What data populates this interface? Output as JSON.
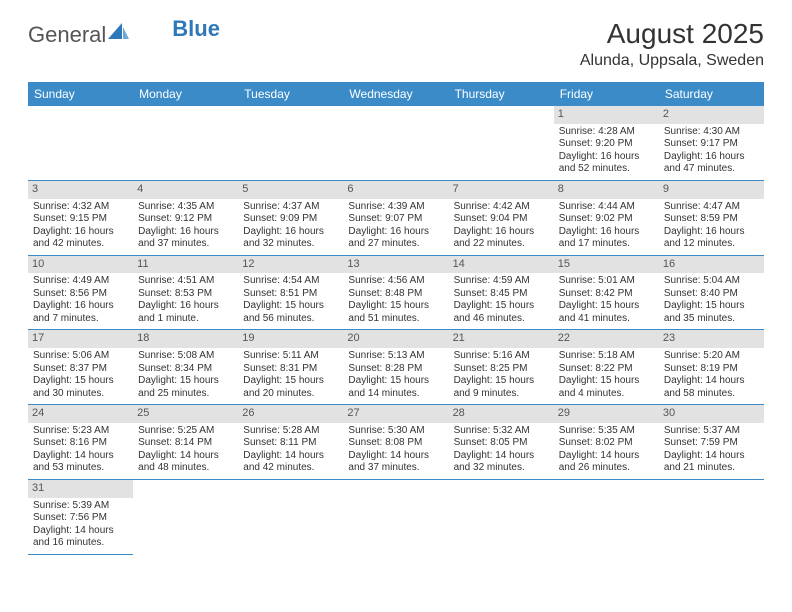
{
  "logo": {
    "t1": "General",
    "t2": "Blue"
  },
  "title": "August 2025",
  "subtitle": "Alunda, Uppsala, Sweden",
  "colors": {
    "header_bg": "#3b8bc9",
    "header_text": "#ffffff",
    "daynum_bg": "#e2e2e2",
    "row_border": "#3b8bc9",
    "logo_blue": "#2e77b8"
  },
  "weekdays": [
    "Sunday",
    "Monday",
    "Tuesday",
    "Wednesday",
    "Thursday",
    "Friday",
    "Saturday"
  ],
  "cells": [
    {
      "n": "",
      "l1": "",
      "l2": "",
      "l3": "",
      "l4": ""
    },
    {
      "n": "",
      "l1": "",
      "l2": "",
      "l3": "",
      "l4": ""
    },
    {
      "n": "",
      "l1": "",
      "l2": "",
      "l3": "",
      "l4": ""
    },
    {
      "n": "",
      "l1": "",
      "l2": "",
      "l3": "",
      "l4": ""
    },
    {
      "n": "",
      "l1": "",
      "l2": "",
      "l3": "",
      "l4": ""
    },
    {
      "n": "1",
      "l1": "Sunrise: 4:28 AM",
      "l2": "Sunset: 9:20 PM",
      "l3": "Daylight: 16 hours",
      "l4": "and 52 minutes."
    },
    {
      "n": "2",
      "l1": "Sunrise: 4:30 AM",
      "l2": "Sunset: 9:17 PM",
      "l3": "Daylight: 16 hours",
      "l4": "and 47 minutes."
    },
    {
      "n": "3",
      "l1": "Sunrise: 4:32 AM",
      "l2": "Sunset: 9:15 PM",
      "l3": "Daylight: 16 hours",
      "l4": "and 42 minutes."
    },
    {
      "n": "4",
      "l1": "Sunrise: 4:35 AM",
      "l2": "Sunset: 9:12 PM",
      "l3": "Daylight: 16 hours",
      "l4": "and 37 minutes."
    },
    {
      "n": "5",
      "l1": "Sunrise: 4:37 AM",
      "l2": "Sunset: 9:09 PM",
      "l3": "Daylight: 16 hours",
      "l4": "and 32 minutes."
    },
    {
      "n": "6",
      "l1": "Sunrise: 4:39 AM",
      "l2": "Sunset: 9:07 PM",
      "l3": "Daylight: 16 hours",
      "l4": "and 27 minutes."
    },
    {
      "n": "7",
      "l1": "Sunrise: 4:42 AM",
      "l2": "Sunset: 9:04 PM",
      "l3": "Daylight: 16 hours",
      "l4": "and 22 minutes."
    },
    {
      "n": "8",
      "l1": "Sunrise: 4:44 AM",
      "l2": "Sunset: 9:02 PM",
      "l3": "Daylight: 16 hours",
      "l4": "and 17 minutes."
    },
    {
      "n": "9",
      "l1": "Sunrise: 4:47 AM",
      "l2": "Sunset: 8:59 PM",
      "l3": "Daylight: 16 hours",
      "l4": "and 12 minutes."
    },
    {
      "n": "10",
      "l1": "Sunrise: 4:49 AM",
      "l2": "Sunset: 8:56 PM",
      "l3": "Daylight: 16 hours",
      "l4": "and 7 minutes."
    },
    {
      "n": "11",
      "l1": "Sunrise: 4:51 AM",
      "l2": "Sunset: 8:53 PM",
      "l3": "Daylight: 16 hours",
      "l4": "and 1 minute."
    },
    {
      "n": "12",
      "l1": "Sunrise: 4:54 AM",
      "l2": "Sunset: 8:51 PM",
      "l3": "Daylight: 15 hours",
      "l4": "and 56 minutes."
    },
    {
      "n": "13",
      "l1": "Sunrise: 4:56 AM",
      "l2": "Sunset: 8:48 PM",
      "l3": "Daylight: 15 hours",
      "l4": "and 51 minutes."
    },
    {
      "n": "14",
      "l1": "Sunrise: 4:59 AM",
      "l2": "Sunset: 8:45 PM",
      "l3": "Daylight: 15 hours",
      "l4": "and 46 minutes."
    },
    {
      "n": "15",
      "l1": "Sunrise: 5:01 AM",
      "l2": "Sunset: 8:42 PM",
      "l3": "Daylight: 15 hours",
      "l4": "and 41 minutes."
    },
    {
      "n": "16",
      "l1": "Sunrise: 5:04 AM",
      "l2": "Sunset: 8:40 PM",
      "l3": "Daylight: 15 hours",
      "l4": "and 35 minutes."
    },
    {
      "n": "17",
      "l1": "Sunrise: 5:06 AM",
      "l2": "Sunset: 8:37 PM",
      "l3": "Daylight: 15 hours",
      "l4": "and 30 minutes."
    },
    {
      "n": "18",
      "l1": "Sunrise: 5:08 AM",
      "l2": "Sunset: 8:34 PM",
      "l3": "Daylight: 15 hours",
      "l4": "and 25 minutes."
    },
    {
      "n": "19",
      "l1": "Sunrise: 5:11 AM",
      "l2": "Sunset: 8:31 PM",
      "l3": "Daylight: 15 hours",
      "l4": "and 20 minutes."
    },
    {
      "n": "20",
      "l1": "Sunrise: 5:13 AM",
      "l2": "Sunset: 8:28 PM",
      "l3": "Daylight: 15 hours",
      "l4": "and 14 minutes."
    },
    {
      "n": "21",
      "l1": "Sunrise: 5:16 AM",
      "l2": "Sunset: 8:25 PM",
      "l3": "Daylight: 15 hours",
      "l4": "and 9 minutes."
    },
    {
      "n": "22",
      "l1": "Sunrise: 5:18 AM",
      "l2": "Sunset: 8:22 PM",
      "l3": "Daylight: 15 hours",
      "l4": "and 4 minutes."
    },
    {
      "n": "23",
      "l1": "Sunrise: 5:20 AM",
      "l2": "Sunset: 8:19 PM",
      "l3": "Daylight: 14 hours",
      "l4": "and 58 minutes."
    },
    {
      "n": "24",
      "l1": "Sunrise: 5:23 AM",
      "l2": "Sunset: 8:16 PM",
      "l3": "Daylight: 14 hours",
      "l4": "and 53 minutes."
    },
    {
      "n": "25",
      "l1": "Sunrise: 5:25 AM",
      "l2": "Sunset: 8:14 PM",
      "l3": "Daylight: 14 hours",
      "l4": "and 48 minutes."
    },
    {
      "n": "26",
      "l1": "Sunrise: 5:28 AM",
      "l2": "Sunset: 8:11 PM",
      "l3": "Daylight: 14 hours",
      "l4": "and 42 minutes."
    },
    {
      "n": "27",
      "l1": "Sunrise: 5:30 AM",
      "l2": "Sunset: 8:08 PM",
      "l3": "Daylight: 14 hours",
      "l4": "and 37 minutes."
    },
    {
      "n": "28",
      "l1": "Sunrise: 5:32 AM",
      "l2": "Sunset: 8:05 PM",
      "l3": "Daylight: 14 hours",
      "l4": "and 32 minutes."
    },
    {
      "n": "29",
      "l1": "Sunrise: 5:35 AM",
      "l2": "Sunset: 8:02 PM",
      "l3": "Daylight: 14 hours",
      "l4": "and 26 minutes."
    },
    {
      "n": "30",
      "l1": "Sunrise: 5:37 AM",
      "l2": "Sunset: 7:59 PM",
      "l3": "Daylight: 14 hours",
      "l4": "and 21 minutes."
    },
    {
      "n": "31",
      "l1": "Sunrise: 5:39 AM",
      "l2": "Sunset: 7:56 PM",
      "l3": "Daylight: 14 hours",
      "l4": "and 16 minutes."
    }
  ]
}
